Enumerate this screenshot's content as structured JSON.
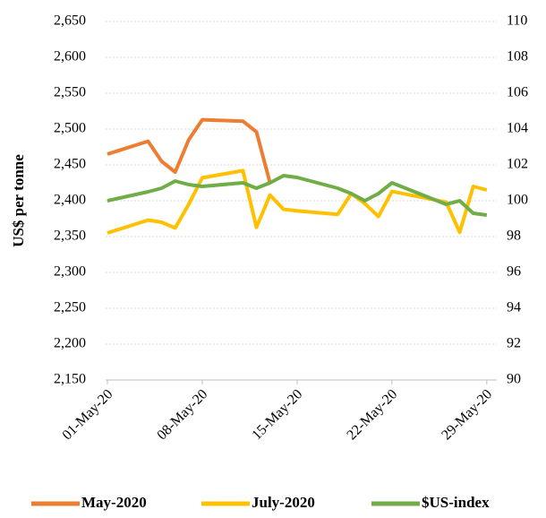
{
  "chart_data": {
    "type": "line",
    "y_label": "US$ per tonne",
    "x": [
      "2020-05-01",
      "2020-05-04",
      "2020-05-05",
      "2020-05-06",
      "2020-05-07",
      "2020-05-08",
      "2020-05-11",
      "2020-05-12",
      "2020-05-13",
      "2020-05-14",
      "2020-05-15",
      "2020-05-18",
      "2020-05-19",
      "2020-05-20",
      "2020-05-21",
      "2020-05-22",
      "2020-05-26",
      "2020-05-27",
      "2020-05-28",
      "2020-05-29"
    ],
    "xlim": [
      "2020-05-01",
      "2020-05-30"
    ],
    "xticks": [
      {
        "value": "2020-05-01",
        "label": "01-May-20"
      },
      {
        "value": "2020-05-08",
        "label": "08-May-20"
      },
      {
        "value": "2020-05-15",
        "label": "15-May-20"
      },
      {
        "value": "2020-05-22",
        "label": "22-May-20"
      },
      {
        "value": "2020-05-29",
        "label": "29-May-20"
      }
    ],
    "ylim": [
      2150,
      2650
    ],
    "yticks": [
      {
        "value": 2150,
        "label": "2,150"
      },
      {
        "value": 2200,
        "label": "2,200"
      },
      {
        "value": 2250,
        "label": "2,250"
      },
      {
        "value": 2300,
        "label": "2,300"
      },
      {
        "value": 2350,
        "label": "2,350"
      },
      {
        "value": 2400,
        "label": "2,400"
      },
      {
        "value": 2450,
        "label": "2,450"
      },
      {
        "value": 2500,
        "label": "2,500"
      },
      {
        "value": 2550,
        "label": "2,550"
      },
      {
        "value": 2600,
        "label": "2,600"
      },
      {
        "value": 2650,
        "label": "2,650"
      }
    ],
    "y2lim": [
      90,
      110
    ],
    "y2ticks": [
      90,
      92,
      94,
      96,
      98,
      100,
      102,
      104,
      106,
      108,
      110
    ],
    "grid": true,
    "legend": "bottom",
    "series": [
      {
        "name": "May-2020",
        "color": "#ED7D31",
        "values": [
          2465,
          2483,
          2455,
          2440,
          2485,
          2513,
          2511,
          2496,
          2425,
          null,
          null,
          null,
          null,
          null,
          null,
          null,
          null,
          null,
          null,
          null
        ]
      },
      {
        "name": "July-2020",
        "color": "#FFC000",
        "values": [
          2355,
          2373,
          2370,
          2362,
          2395,
          2432,
          2442,
          2363,
          2408,
          2388,
          2386,
          2381,
          2410,
          2396,
          2378,
          2413,
          2398,
          2356,
          2420,
          2415
        ]
      },
      {
        "name": "$US-index",
        "color": "#70AD47",
        "axis": "y2",
        "values": [
          100.0,
          100.5,
          100.7,
          101.1,
          100.9,
          100.8,
          101.0,
          100.7,
          101.0,
          101.4,
          101.3,
          100.7,
          100.4,
          100.0,
          100.4,
          101.0,
          99.8,
          100.0,
          99.3,
          99.2
        ]
      }
    ]
  }
}
